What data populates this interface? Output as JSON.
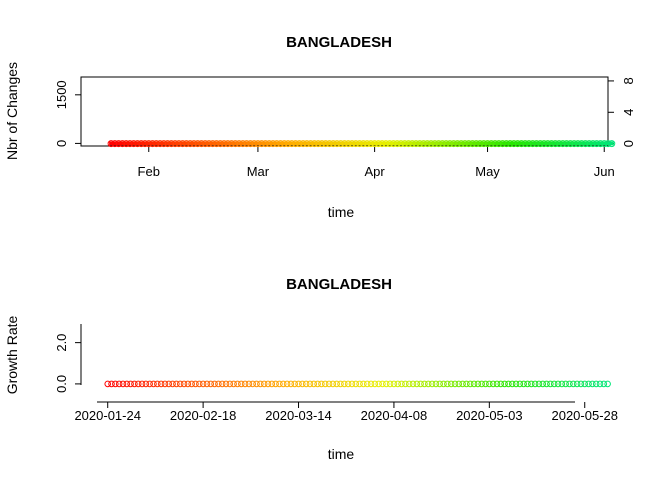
{
  "chart_data": [
    {
      "type": "scatter",
      "title": "BANGLADESH",
      "xlabel": "time",
      "ylabel": "Nbr of Changes",
      "x_range": [
        "2020-01-14",
        "2020-06-02"
      ],
      "ylim_left": [
        -80,
        2050
      ],
      "ylim_right": [
        -0.3,
        8.5
      ],
      "x_ticks": [
        {
          "date": "2020-02-01",
          "label": "Feb"
        },
        {
          "date": "2020-03-01",
          "label": "Mar"
        },
        {
          "date": "2020-04-01",
          "label": "Apr"
        },
        {
          "date": "2020-05-01",
          "label": "May"
        },
        {
          "date": "2020-06-01",
          "label": "Jun"
        }
      ],
      "y_ticks_left": [
        0,
        1500
      ],
      "y_ticks_left_labels": [
        "0",
        "1500"
      ],
      "y_ticks_right": [
        0,
        4,
        8
      ],
      "y_ticks_right_labels": [
        "0",
        "4",
        "8"
      ],
      "series": [
        {
          "axis": "left",
          "marker": "filled-square",
          "start_date": "2020-01-22",
          "values": [
            0,
            0,
            0,
            0,
            0,
            0,
            0,
            0,
            0,
            0,
            0,
            0,
            0,
            0,
            0,
            0,
            0,
            0,
            0,
            0,
            0,
            0,
            0,
            0,
            0,
            0,
            0,
            0,
            0,
            0,
            0,
            0,
            0,
            0,
            0,
            0,
            0,
            0,
            0,
            0,
            0,
            0,
            0,
            0,
            0,
            0,
            0,
            0,
            0,
            0,
            0,
            0,
            0,
            0,
            0,
            0,
            0,
            0,
            0,
            0,
            0,
            0,
            0,
            0,
            0,
            0,
            0,
            0,
            0,
            0,
            0,
            0,
            0,
            0,
            0,
            0,
            0,
            0,
            0,
            0,
            0,
            0,
            0,
            0,
            0,
            0,
            0,
            0,
            0,
            0,
            0,
            0,
            0,
            0,
            0,
            0,
            0,
            0,
            0,
            0,
            0,
            0,
            0,
            0,
            0,
            0,
            0,
            0,
            0,
            0,
            0,
            0,
            0,
            0,
            0,
            0,
            0,
            0,
            0,
            0,
            0,
            0,
            0,
            0,
            0,
            0,
            0,
            0,
            0,
            0,
            0,
            0,
            0,
            0
          ]
        },
        {
          "axis": "right",
          "marker": "open-circle",
          "start_date": "2020-01-22",
          "values": [
            0,
            0,
            0,
            0,
            0,
            0,
            0,
            0,
            0,
            0,
            0,
            0,
            0,
            0,
            0,
            0,
            0,
            0,
            0,
            0,
            0,
            0,
            0,
            0,
            0,
            0,
            0,
            0,
            0,
            0,
            0,
            0,
            0,
            0,
            0,
            0,
            0,
            0,
            0,
            0,
            0,
            0,
            0,
            0,
            0,
            0,
            0,
            0,
            0,
            0,
            0,
            0,
            0,
            0,
            0,
            0,
            0,
            0,
            0,
            0,
            0,
            0,
            0,
            0,
            0,
            0,
            0,
            0,
            0,
            0,
            0,
            0,
            0,
            0,
            0,
            0,
            0,
            0,
            0,
            0,
            0,
            0,
            0,
            0,
            0,
            0,
            0,
            0,
            0,
            0,
            0,
            0,
            0,
            0,
            0,
            0,
            0,
            0,
            0,
            0,
            0,
            0,
            0,
            0,
            0,
            0,
            0,
            0,
            0,
            0,
            0,
            0,
            0,
            0,
            0,
            0,
            0,
            0,
            0,
            0,
            0,
            0,
            0,
            0,
            0,
            0,
            0,
            0,
            0,
            0,
            0,
            0,
            0,
            0
          ]
        }
      ]
    },
    {
      "type": "bar",
      "title": "BANGLADESH",
      "xlabel": "time",
      "ylabel": "Growth Rate",
      "x_range": [
        "2020-01-17",
        "2020-06-01"
      ],
      "ylim": [
        -0.15,
        3.0
      ],
      "x_ticks": [
        {
          "date": "2020-01-24",
          "label": "2020-01-24"
        },
        {
          "date": "2020-02-18",
          "label": "2020-02-18"
        },
        {
          "date": "2020-03-14",
          "label": "2020-03-14"
        },
        {
          "date": "2020-04-08",
          "label": "2020-04-08"
        },
        {
          "date": "2020-05-03",
          "label": "2020-05-03"
        },
        {
          "date": "2020-05-28",
          "label": "2020-05-28"
        }
      ],
      "y_ticks": [
        0,
        2
      ],
      "y_tick_labels": [
        "0.0",
        "2.0"
      ],
      "start_date": "2020-01-24",
      "values": [
        0,
        0,
        0,
        0,
        0,
        0,
        0,
        0,
        0,
        0,
        0,
        0,
        0,
        0,
        0,
        0,
        0,
        0,
        0,
        0,
        0,
        0,
        0,
        0,
        0,
        0,
        0,
        0,
        0,
        0,
        0,
        0,
        0,
        0,
        0,
        0,
        0,
        0,
        0,
        0,
        0,
        0,
        0,
        0,
        0,
        0,
        0,
        0,
        0,
        0,
        0,
        0,
        0,
        0,
        0,
        0,
        0,
        0,
        0,
        0,
        0,
        0,
        0,
        0,
        0,
        0,
        0,
        0,
        0,
        0,
        0,
        0,
        0,
        0,
        0,
        0,
        0,
        0,
        0,
        0,
        0,
        0,
        0,
        0,
        0,
        0,
        0,
        0,
        0,
        0,
        0,
        0,
        0,
        0,
        0,
        0,
        0,
        0,
        0,
        0,
        0,
        0,
        0,
        0,
        0,
        0,
        0,
        0,
        0,
        0,
        0,
        0,
        0,
        0,
        0,
        0,
        0,
        0,
        0,
        0,
        0,
        0,
        0,
        0,
        0,
        0,
        0,
        0,
        0,
        0,
        0,
        0
      ]
    }
  ]
}
